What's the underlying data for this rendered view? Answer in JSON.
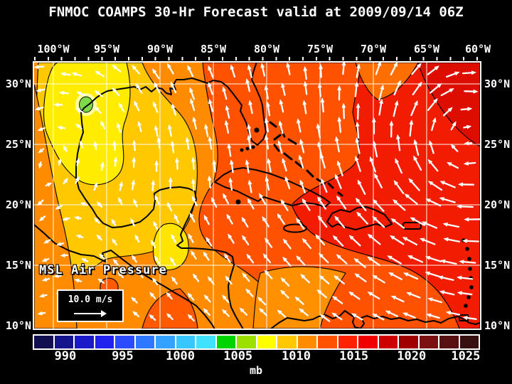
{
  "title": "FNMOC COAMPS 30-Hr Forecast valid at 2009/09/14 06Z",
  "map": {
    "field_label": "MSL Air Pressure",
    "wind_scale_label": "10.0 m/s",
    "lon_labels": [
      "100°W",
      "95°W",
      "90°W",
      "85°W",
      "80°W",
      "75°W",
      "70°W",
      "65°W",
      "60°W"
    ],
    "lat_labels": [
      "30°N",
      "25°N",
      "20°N",
      "15°N",
      "10°N"
    ],
    "grid_color": "#ffffff",
    "coastline_color": "#000000",
    "wind_arrow_color": "#ffffff",
    "field_zones": [
      {
        "name": "base_orange",
        "color": "#ff8c00",
        "approx_mb": 1013
      },
      {
        "name": "west_strip",
        "color": "#ff8c00",
        "approx_mb": 1013
      },
      {
        "name": "gold_gulf",
        "color": "#ffc800",
        "approx_mb": 1010
      },
      {
        "name": "yellow_low",
        "color": "#ffec00",
        "approx_mb": 1008
      },
      {
        "name": "pale_ring",
        "color": "#ffffa2",
        "approx_mb": 1006
      },
      {
        "name": "green_low_center",
        "color": "#7fd84a",
        "approx_mb": 1005
      },
      {
        "name": "yucatan_yellow",
        "color": "#ffe400",
        "approx_mb": 1009
      },
      {
        "name": "orange_red_east",
        "color": "#ff5200",
        "approx_mb": 1014
      },
      {
        "name": "red_atlantic",
        "color": "#f21c00",
        "approx_mb": 1016
      },
      {
        "name": "dark_red_corner",
        "color": "#dd0e00",
        "approx_mb": 1017
      },
      {
        "name": "orange_wedge",
        "color": "#ff6e00",
        "approx_mb": 1014
      },
      {
        "name": "sw_caribbean_orange",
        "color": "#ff9000",
        "approx_mb": 1013
      },
      {
        "name": "panama_patch",
        "color": "#ff5a00",
        "approx_mb": 1014
      },
      {
        "name": "pacific_patch",
        "color": "#ff5a00",
        "approx_mb": 1014
      }
    ]
  },
  "colorbar": {
    "units_label": "mb",
    "tick_labels": [
      "990",
      "995",
      "1000",
      "1005",
      "1010",
      "1015",
      "1020",
      "1025"
    ],
    "cell_colors": [
      "#10104e",
      "#14148c",
      "#1a1ac8",
      "#2222ee",
      "#2a4cff",
      "#2e78ff",
      "#33a2ff",
      "#38c6ff",
      "#40e2ff",
      "#00d400",
      "#9ce000",
      "#ffff00",
      "#ffc800",
      "#ff8c00",
      "#ff5200",
      "#ff2200",
      "#f00000",
      "#cc0000",
      "#a00000",
      "#7c1010",
      "#581010",
      "#381010"
    ]
  }
}
